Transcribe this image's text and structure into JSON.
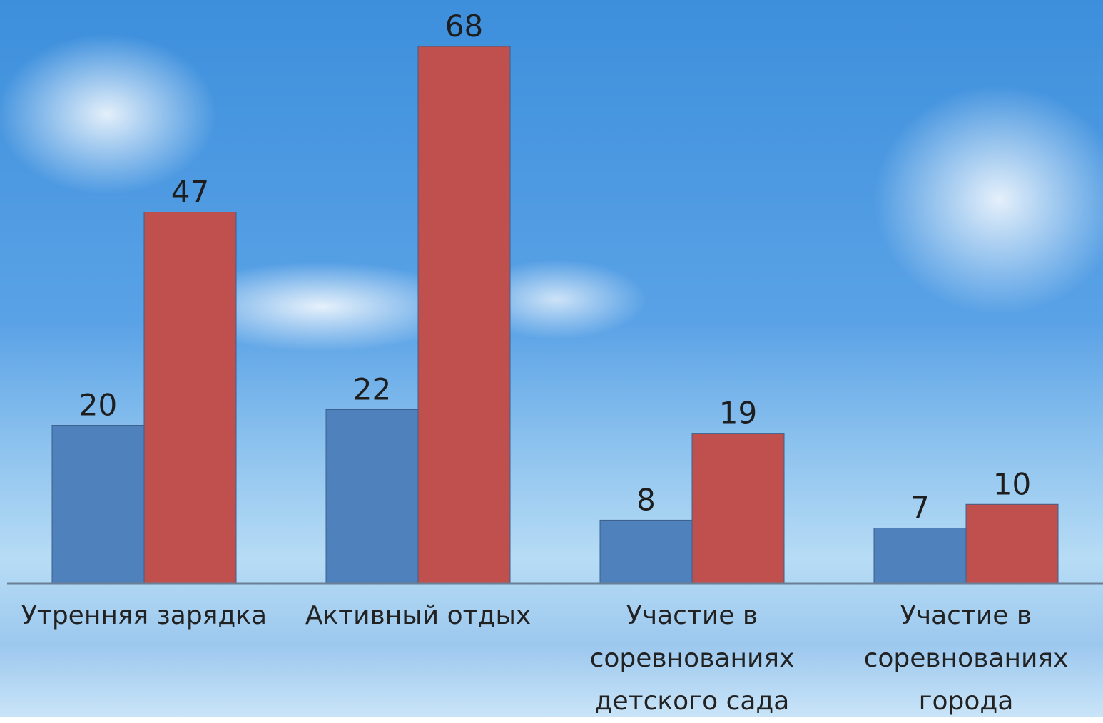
{
  "chart_data": {
    "type": "bar",
    "categories": [
      "Утренняя зарядка",
      "Активный отдых",
      "Участие в соревнованиях детского сада",
      "Участие в соревнованиях города"
    ],
    "series": [
      {
        "color": "#4f81bd",
        "values": [
          20,
          22,
          8,
          7
        ]
      },
      {
        "color": "#c0504d",
        "values": [
          47,
          68,
          19,
          10
        ]
      }
    ]
  }
}
